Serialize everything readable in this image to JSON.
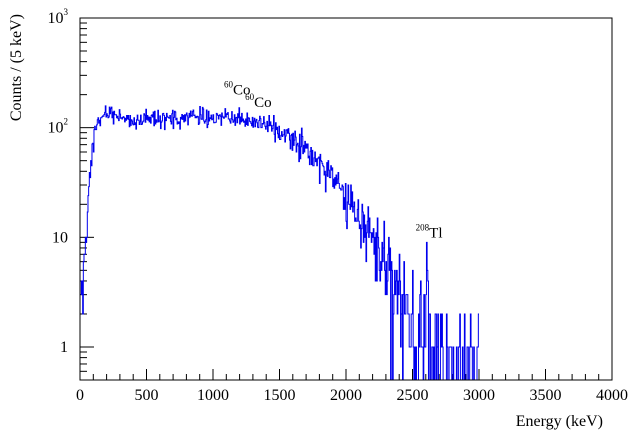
{
  "chart_data": {
    "type": "line",
    "style": "step-histogram",
    "xlabel": "Energy (keV)",
    "ylabel": "Counts / (5 keV)",
    "x_unit": "keV",
    "bin_width": 5,
    "xlim": [
      0,
      4000
    ],
    "ylim": [
      0.5,
      1000
    ],
    "yscale": "log",
    "grid": false,
    "line_color": "#0000ee",
    "x_ticks": [
      0,
      500,
      1000,
      1500,
      2000,
      2500,
      3000,
      3500,
      4000
    ],
    "x_tick_labels": [
      "0",
      "500",
      "1000",
      "1500",
      "2000",
      "2500",
      "3000",
      "3500",
      "4000"
    ],
    "y_ticks": [
      1,
      10,
      100,
      1000
    ],
    "y_tick_labels": [
      {
        "base": "1",
        "exp": ""
      },
      {
        "base": "10",
        "exp": ""
      },
      {
        "base": "10",
        "exp": "2"
      },
      {
        "base": "10",
        "exp": "3"
      }
    ],
    "annotations": [
      {
        "mass": "60",
        "element": "Co",
        "x_keV": 1173,
        "y": 200
      },
      {
        "mass": "60",
        "element": "Co",
        "x_keV": 1332,
        "y": 155
      },
      {
        "mass": "208",
        "element": "Tl",
        "x_keV": 2614,
        "y": 10
      }
    ],
    "envelope": {
      "x": [
        5,
        20,
        40,
        60,
        80,
        100,
        130,
        160,
        200,
        250,
        300,
        400,
        500,
        600,
        700,
        800,
        900,
        1000,
        1100,
        1200,
        1300,
        1400,
        1500,
        1600,
        1700,
        1800,
        1900,
        2000,
        2100,
        2200,
        2300,
        2400,
        2450,
        2500,
        2550,
        2600,
        2650,
        2700,
        2800,
        2950
      ],
      "y": [
        2,
        3,
        8,
        20,
        45,
        80,
        105,
        125,
        140,
        135,
        125,
        115,
        118,
        118,
        122,
        125,
        127,
        125,
        125,
        120,
        112,
        105,
        95,
        80,
        62,
        48,
        35,
        24,
        16,
        10,
        6,
        3.5,
        2.5,
        1.6,
        1.2,
        0.9,
        0.7,
        0.6,
        0.45,
        0.3
      ]
    }
  }
}
